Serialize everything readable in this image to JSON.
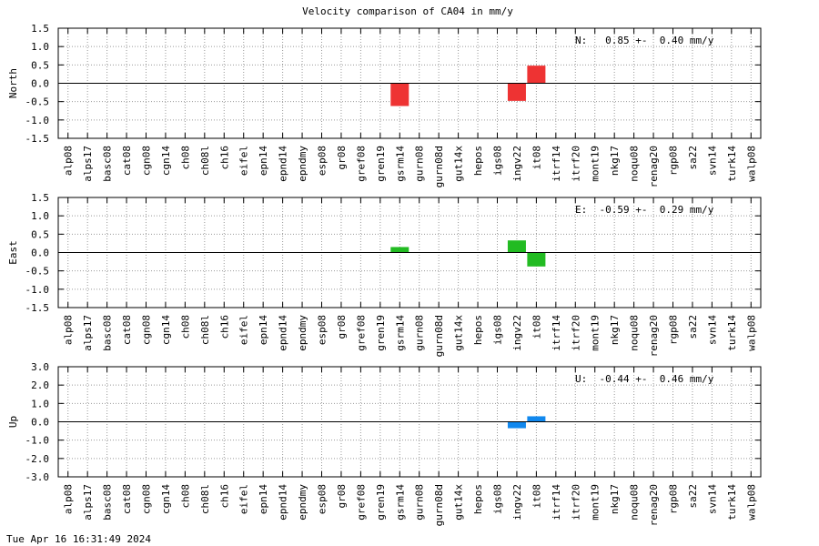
{
  "title": "Velocity comparison of CA04 in mm/y",
  "footer": "Tue Apr 16 16:31:49 2024",
  "chart_data": [
    {
      "type": "bar",
      "ylabel": "North",
      "ylim": [
        -1.5,
        1.5
      ],
      "yticks": [
        "1.5",
        "1.0",
        "0.5",
        "0.0",
        "-0.5",
        "-1.0",
        "-1.5"
      ],
      "yticks_values": [
        1.5,
        1.0,
        0.5,
        0.0,
        -0.5,
        -1.0,
        -1.5
      ],
      "color": "#ee3333",
      "annotation": "N:   0.85 +-  0.40 mm/y",
      "categories": [
        "alp08",
        "alps17",
        "basc08",
        "cat08",
        "cgn08",
        "cgn14",
        "ch08",
        "ch08l",
        "ch16",
        "eifel",
        "epn14",
        "epnd14",
        "epndmy",
        "esp08",
        "gr08",
        "gref08",
        "gren19",
        "gsrm14",
        "gurn08",
        "gurn08d",
        "gut14x",
        "hepos",
        "igs08",
        "ingv22",
        "it08",
        "itrf14",
        "itrf20",
        "mont19",
        "nkg17",
        "noqu08",
        "renag20",
        "rgp08",
        "sa22",
        "svn14",
        "turk14",
        "walp08"
      ],
      "values": [
        null,
        null,
        null,
        null,
        null,
        null,
        null,
        null,
        null,
        null,
        null,
        null,
        null,
        null,
        null,
        null,
        null,
        -0.62,
        null,
        null,
        null,
        null,
        null,
        -0.48,
        0.48,
        null,
        null,
        null,
        null,
        null,
        null,
        null,
        null,
        null,
        null,
        null
      ],
      "grid": true
    },
    {
      "type": "bar",
      "ylabel": "East",
      "ylim": [
        -1.5,
        1.5
      ],
      "yticks": [
        "1.5",
        "1.0",
        "0.5",
        "0.0",
        "-0.5",
        "-1.0",
        "-1.5"
      ],
      "yticks_values": [
        1.5,
        1.0,
        0.5,
        0.0,
        -0.5,
        -1.0,
        -1.5
      ],
      "color": "#22bb22",
      "annotation": "E:  -0.59 +-  0.29 mm/y",
      "categories": [
        "alp08",
        "alps17",
        "basc08",
        "cat08",
        "cgn08",
        "cgn14",
        "ch08",
        "ch08l",
        "ch16",
        "eifel",
        "epn14",
        "epnd14",
        "epndmy",
        "esp08",
        "gr08",
        "gref08",
        "gren19",
        "gsrm14",
        "gurn08",
        "gurn08d",
        "gut14x",
        "hepos",
        "igs08",
        "ingv22",
        "it08",
        "itrf14",
        "itrf20",
        "mont19",
        "nkg17",
        "noqu08",
        "renag20",
        "rgp08",
        "sa22",
        "svn14",
        "turk14",
        "walp08"
      ],
      "values": [
        null,
        null,
        null,
        null,
        null,
        null,
        null,
        null,
        null,
        null,
        null,
        null,
        null,
        null,
        null,
        null,
        null,
        0.15,
        null,
        null,
        null,
        null,
        null,
        0.33,
        -0.38,
        null,
        null,
        null,
        null,
        null,
        null,
        null,
        null,
        null,
        null,
        null
      ],
      "grid": true
    },
    {
      "type": "bar",
      "ylabel": "Up",
      "ylim": [
        -3.0,
        3.0
      ],
      "yticks": [
        "3.0",
        "2.0",
        "1.0",
        "0.0",
        "-1.0",
        "-2.0",
        "-3.0"
      ],
      "yticks_values": [
        3.0,
        2.0,
        1.0,
        0.0,
        -1.0,
        -2.0,
        -3.0
      ],
      "color": "#1188ee",
      "annotation": "U:  -0.44 +-  0.46 mm/y",
      "categories": [
        "alp08",
        "alps17",
        "basc08",
        "cat08",
        "cgn08",
        "cgn14",
        "ch08",
        "ch08l",
        "ch16",
        "eifel",
        "epn14",
        "epnd14",
        "epndmy",
        "esp08",
        "gr08",
        "gref08",
        "gren19",
        "gsrm14",
        "gurn08",
        "gurn08d",
        "gut14x",
        "hepos",
        "igs08",
        "ingv22",
        "it08",
        "itrf14",
        "itrf20",
        "mont19",
        "nkg17",
        "noqu08",
        "renag20",
        "rgp08",
        "sa22",
        "svn14",
        "turk14",
        "walp08"
      ],
      "values": [
        null,
        null,
        null,
        null,
        null,
        null,
        null,
        null,
        null,
        null,
        null,
        null,
        null,
        null,
        null,
        null,
        null,
        null,
        null,
        null,
        null,
        null,
        null,
        -0.35,
        0.3,
        null,
        null,
        null,
        null,
        null,
        null,
        null,
        null,
        null,
        null,
        null
      ],
      "grid": true
    }
  ]
}
